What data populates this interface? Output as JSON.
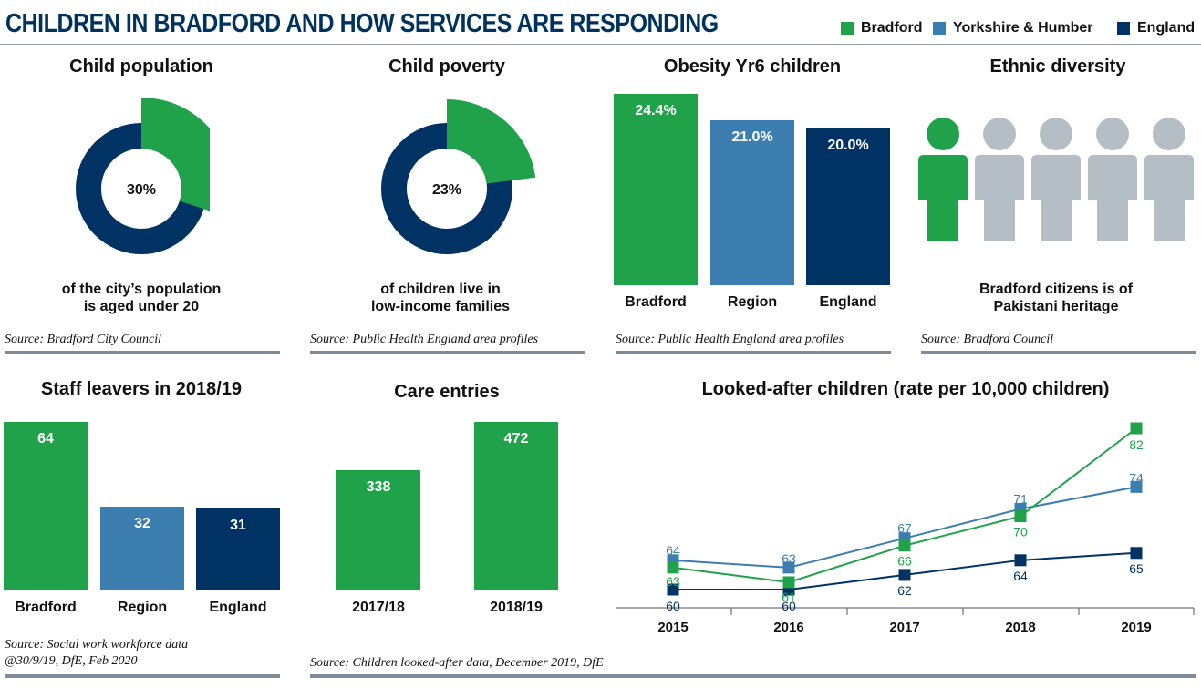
{
  "title": "CHILDREN IN BRADFORD AND HOW SERVICES ARE RESPONDING",
  "legend": [
    {
      "label": "Bradford",
      "color": "#1fa24a"
    },
    {
      "label": "Yorkshire & Humber",
      "color": "#3d7eb0"
    },
    {
      "label": "England",
      "color": "#003263"
    }
  ],
  "colors": {
    "bradford": "#1fa24a",
    "region": "#3d7eb0",
    "england": "#003263",
    "grey": "#b4bec4",
    "rule": "#7f8b96"
  },
  "panels": {
    "child_population": {
      "title": "Child population",
      "value_label": "30%",
      "caption_line1": "of the city’s population",
      "caption_line2": "is aged under 20",
      "source": "Source: Bradford City Council"
    },
    "child_poverty": {
      "title": "Child poverty",
      "value_label": "23%",
      "caption_line1": "of children live in",
      "caption_line2": "low-income families",
      "source": "Source: Public Health England area profiles"
    },
    "obesity": {
      "title": "Obesity Yr6 children",
      "source": "Source: Public Health England area profiles"
    },
    "ethnic": {
      "title": "Ethnic diversity",
      "caption_line1": "Bradford citizens is of",
      "caption_line2": "Pakistani heritage",
      "source": "Source: Bradford Council",
      "icon": "person-icon"
    },
    "staff": {
      "title": "Staff leavers in 2018/19",
      "source_line1": "Source: Social work workforce data",
      "source_line2": "@30/9/19, DfE, Feb 2020"
    },
    "care": {
      "title": "Care entries",
      "source": "Source: Children looked-after data, December 2019, DfE"
    },
    "lac": {
      "title": "Looked-after children (rate per 10,000 children)"
    }
  },
  "chart_data": [
    {
      "type": "pie",
      "title": "Child population",
      "segments": [
        {
          "label": "Aged under 20",
          "value": 30
        },
        {
          "label": "Other",
          "value": 70
        }
      ]
    },
    {
      "type": "pie",
      "title": "Child poverty",
      "segments": [
        {
          "label": "Low-income families",
          "value": 23
        },
        {
          "label": "Other",
          "value": 77
        }
      ]
    },
    {
      "type": "bar",
      "title": "Obesity Yr6 children",
      "categories": [
        "Bradford",
        "Region",
        "England"
      ],
      "values": [
        24.4,
        21.0,
        20.0
      ],
      "value_labels": [
        "24.4%",
        "21.0%",
        "20.0%"
      ]
    },
    {
      "type": "bar",
      "title": "Ethnic diversity",
      "categories": [
        "Pakistani heritage",
        "Other"
      ],
      "values": [
        1,
        4
      ],
      "unit": "icons of 5"
    },
    {
      "type": "bar",
      "title": "Staff leavers in 2018/19",
      "categories": [
        "Bradford",
        "Region",
        "England"
      ],
      "values": [
        64,
        32,
        31
      ]
    },
    {
      "type": "bar",
      "title": "Care entries",
      "categories": [
        "2017/18",
        "2018/19"
      ],
      "values": [
        338,
        472
      ]
    },
    {
      "type": "line",
      "title": "Looked-after children (rate per 10,000 children)",
      "x": [
        "2015",
        "2016",
        "2017",
        "2018",
        "2019"
      ],
      "series": [
        {
          "name": "Bradford",
          "values": [
            63,
            61,
            66,
            70,
            82
          ]
        },
        {
          "name": "Yorkshire & Humber",
          "values": [
            64,
            63,
            67,
            71,
            74
          ]
        },
        {
          "name": "England",
          "values": [
            60,
            60,
            62,
            64,
            65
          ]
        }
      ]
    }
  ]
}
